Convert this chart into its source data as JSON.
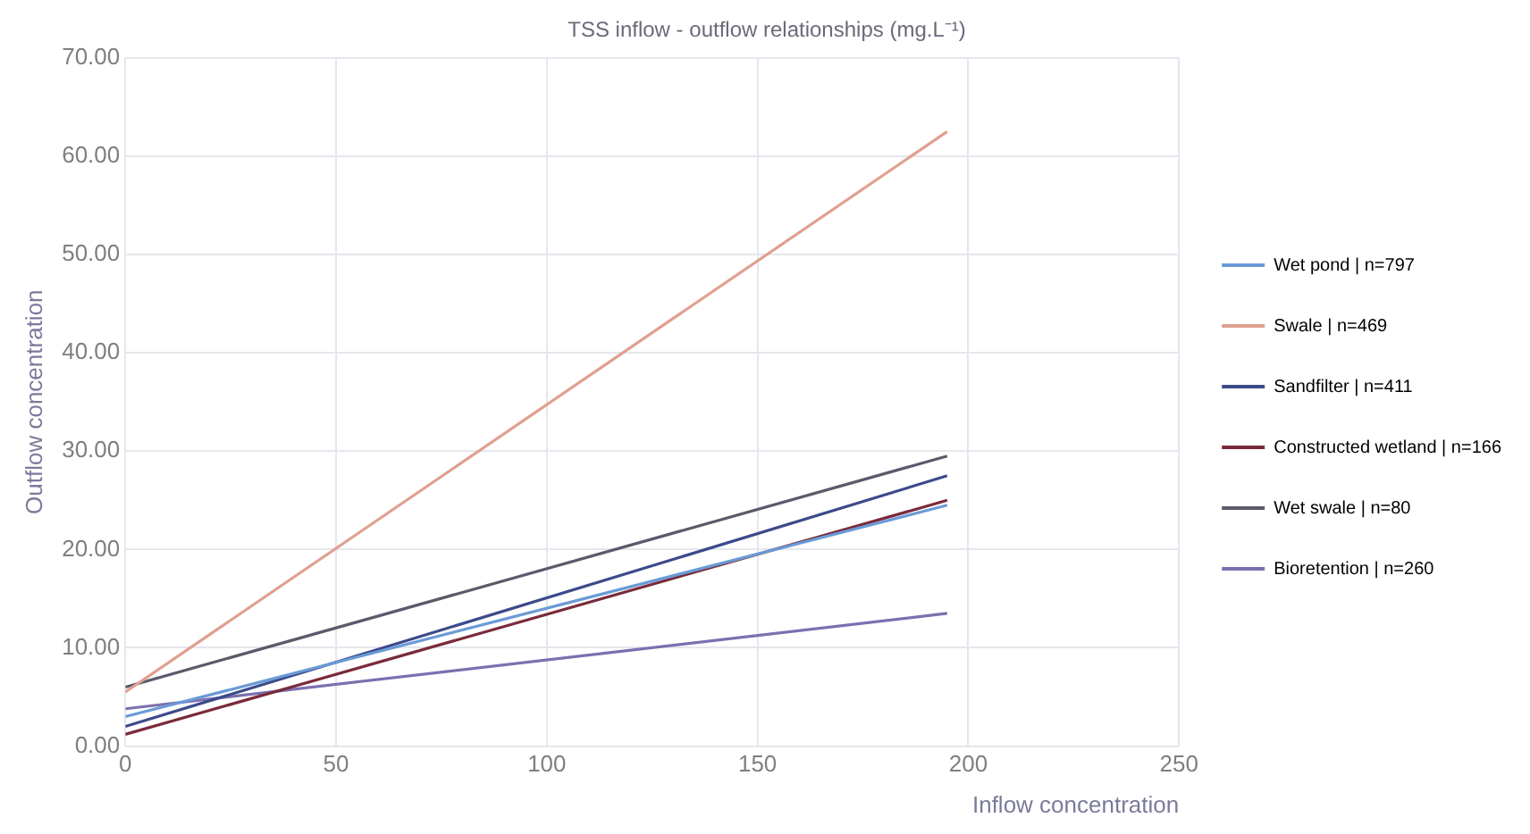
{
  "chart_data": {
    "type": "line",
    "title": "TSS inflow - outflow relationships (mg.L⁻¹)",
    "xlabel": "Inflow concentration",
    "ylabel": "Outflow concentration",
    "xlim": [
      0,
      250
    ],
    "xticks": [
      0,
      50,
      100,
      150,
      200,
      250
    ],
    "ylim": [
      0,
      70
    ],
    "yticks": [
      {
        "value": 0,
        "label": "0.00"
      },
      {
        "value": 10,
        "label": "10.00"
      },
      {
        "value": 20,
        "label": "20.00"
      },
      {
        "value": 30,
        "label": "30.00"
      },
      {
        "value": 40,
        "label": "40.00"
      },
      {
        "value": 50,
        "label": "50.00"
      },
      {
        "value": 60,
        "label": "60.00"
      },
      {
        "value": 70,
        "label": "70.00"
      }
    ],
    "grid": true,
    "legend": "right",
    "marker": "none",
    "line_style": "solid",
    "x": [
      0,
      195
    ],
    "series": [
      {
        "name": "Wet pond | n=797",
        "color": "#6a9ad6",
        "values": [
          3.0,
          24.5
        ]
      },
      {
        "name": "Swale | n=469",
        "color": "#e0a090",
        "values": [
          5.5,
          62.5
        ]
      },
      {
        "name": "Sandfilter | n=411",
        "color": "#3c4a8a",
        "values": [
          2.0,
          27.5
        ]
      },
      {
        "name": "Constructed wetland | n=166",
        "color": "#7a2a3a",
        "values": [
          1.2,
          25.0
        ]
      },
      {
        "name": "Wet swale | n=80",
        "color": "#5a5a6a",
        "values": [
          6.0,
          29.5
        ]
      },
      {
        "name": "Bioretention | n=260",
        "color": "#7a70b0",
        "values": [
          3.8,
          13.5
        ]
      }
    ]
  }
}
